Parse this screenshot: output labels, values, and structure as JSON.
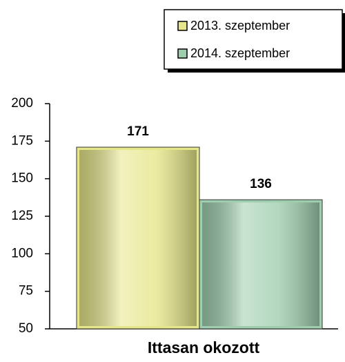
{
  "chart_data": {
    "type": "bar",
    "categories": [
      "Ittasan okozott"
    ],
    "series": [
      {
        "name": "2013. szeptember",
        "color": "#e6e68a",
        "values": [
          171
        ]
      },
      {
        "name": "2014. szeptember",
        "color": "#9fceae",
        "values": [
          136
        ]
      }
    ],
    "ylim": [
      50,
      200
    ],
    "yticks": [
      50,
      75,
      100,
      125,
      150,
      175,
      200
    ],
    "grid": false,
    "legend": "top-right"
  }
}
